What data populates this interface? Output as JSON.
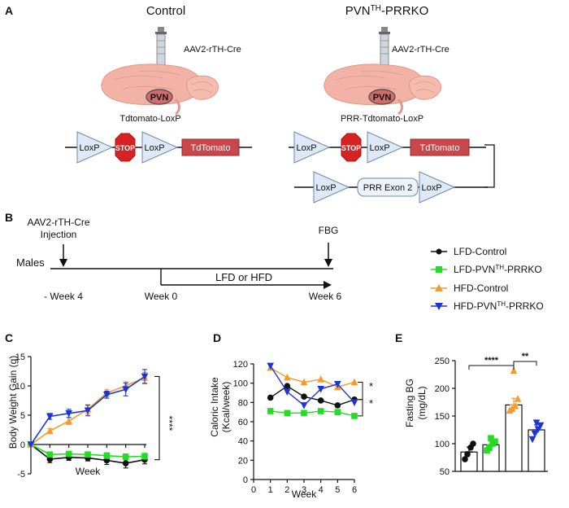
{
  "panel_a": {
    "label": "A",
    "control": {
      "title": "Control",
      "virus": "AAV2-rTH-Cre",
      "region": "PVN",
      "reporter": "Tdtomato-LoxP",
      "construct": [
        "LoxP",
        "STOP",
        "LoxP",
        "TdTomato"
      ]
    },
    "ko": {
      "title_main": "PVN",
      "title_sup": "TH",
      "title_rest": "-PRRKO",
      "virus": "AAV2-rTH-Cre",
      "region": "PVN",
      "reporter": "PRR-Tdtomato-LoxP",
      "construct1": [
        "LoxP",
        "STOP",
        "LoxP",
        "TdTomato"
      ],
      "construct2": [
        "LoxP",
        "PRR Exon 2",
        "LoxP"
      ]
    }
  },
  "panel_b": {
    "label": "B",
    "injection_line1": "AAV2-rTH-Cre",
    "injection_line2": "Injection",
    "fbg": "FBG",
    "males": "Males",
    "week_m4": "- Week 4",
    "week_0": "Week 0",
    "week_6": "Week 6",
    "diet": "LFD or HFD"
  },
  "legend": [
    {
      "label": "LFD-Control",
      "color": "#111111",
      "marker": "circle"
    },
    {
      "label_pre": "LFD-PVN",
      "label_sup": "TH",
      "label_post": "-PRRKO",
      "color": "#22dd22",
      "marker": "square"
    },
    {
      "label": "HFD-Control",
      "color": "#f39c2b",
      "marker": "triangle-up"
    },
    {
      "label_pre": "HFD-PVN",
      "label_sup": "TH",
      "label_post": "-PRRKO",
      "color": "#1d35d6",
      "marker": "triangle-down"
    }
  ],
  "chart_data": [
    {
      "panel": "C",
      "type": "line",
      "xlabel": "Week",
      "ylabel": "Body Weight Gain (g)",
      "ylim": [
        -5,
        15
      ],
      "yticks": [
        -5,
        0,
        5,
        10,
        15
      ],
      "xtick_shown": "5",
      "x": [
        0,
        1,
        2,
        3,
        4,
        5,
        6
      ],
      "significance": "****",
      "series": [
        {
          "name": "LFD-Control",
          "color": "#111111",
          "values": [
            0,
            -2.5,
            -2.2,
            -2.3,
            -2.7,
            -3.2,
            -2.6
          ],
          "err": [
            0,
            0.6,
            0.5,
            0.5,
            0.7,
            0.8,
            0.7
          ]
        },
        {
          "name": "LFD-PVNTH-PRRKO",
          "color": "#22dd22",
          "values": [
            0,
            -1.7,
            -1.6,
            -1.7,
            -1.9,
            -2.1,
            -2.0
          ],
          "err": [
            0,
            0.4,
            0.4,
            0.4,
            0.5,
            0.5,
            0.5
          ]
        },
        {
          "name": "HFD-Control",
          "color": "#f39c2b",
          "values": [
            0,
            2.3,
            4.0,
            6.0,
            8.8,
            10.0,
            11.4
          ],
          "err": [
            0,
            0.4,
            0.6,
            0.8,
            0.6,
            0.7,
            0.9
          ]
        },
        {
          "name": "HFD-PVNTH-PRRKO",
          "color": "#1d35d6",
          "values": [
            0,
            4.8,
            5.3,
            5.8,
            8.5,
            9.4,
            11.6
          ],
          "err": [
            0,
            0.5,
            0.7,
            0.9,
            0.6,
            1.1,
            1.2
          ]
        }
      ]
    },
    {
      "panel": "D",
      "type": "line",
      "xlabel": "Week",
      "ylabel_line1": "Caloric Intake",
      "ylabel_line2": "(Kcal/week)",
      "ylim": [
        0,
        120
      ],
      "yticks": [
        0,
        20,
        40,
        60,
        80,
        100,
        120
      ],
      "xlim": [
        0,
        6
      ],
      "xticks": [
        0,
        1,
        2,
        3,
        4,
        5,
        6
      ],
      "x": [
        1,
        2,
        3,
        4,
        5,
        6
      ],
      "significance": [
        "*",
        "*"
      ],
      "series": [
        {
          "name": "LFD-Control",
          "color": "#111111",
          "values": [
            85,
            97,
            86,
            82,
            77,
            83
          ]
        },
        {
          "name": "LFD-PVNTH-PRRKO",
          "color": "#22dd22",
          "values": [
            71,
            69,
            69,
            71,
            70,
            66
          ]
        },
        {
          "name": "HFD-Control",
          "color": "#f39c2b",
          "values": [
            116,
            106,
            101,
            104,
            96,
            101
          ]
        },
        {
          "name": "HFD-PVNTH-PRRKO",
          "color": "#1d35d6",
          "values": [
            118,
            91,
            77,
            94,
            99,
            80
          ]
        }
      ]
    },
    {
      "panel": "E",
      "type": "bar",
      "ylabel_line1": "Fasting BG",
      "ylabel_line2": "(mg/dL)",
      "ylim": [
        50,
        250
      ],
      "yticks": [
        50,
        100,
        150,
        200,
        250
      ],
      "significance": [
        {
          "from": 0,
          "to": 2,
          "label": "****"
        },
        {
          "from": 2,
          "to": 3,
          "label": "**"
        }
      ],
      "bars": [
        {
          "name": "LFD-Control",
          "color": "#111111",
          "value": 85,
          "err": 9,
          "points": [
            72,
            81,
            93,
            100
          ]
        },
        {
          "name": "LFD-PVNTH-PRRKO",
          "color": "#22dd22",
          "value": 98,
          "err": 8,
          "points": [
            88,
            92,
            100,
            104,
            110
          ]
        },
        {
          "name": "HFD-Control",
          "color": "#f39c2b",
          "value": 170,
          "err": 12,
          "points": [
            160,
            163,
            168,
            181,
            232
          ]
        },
        {
          "name": "HFD-PVNTH-PRRKO",
          "color": "#1d35d6",
          "value": 125,
          "err": 9,
          "points": [
            108,
            118,
            126,
            133,
            138
          ]
        }
      ]
    }
  ]
}
